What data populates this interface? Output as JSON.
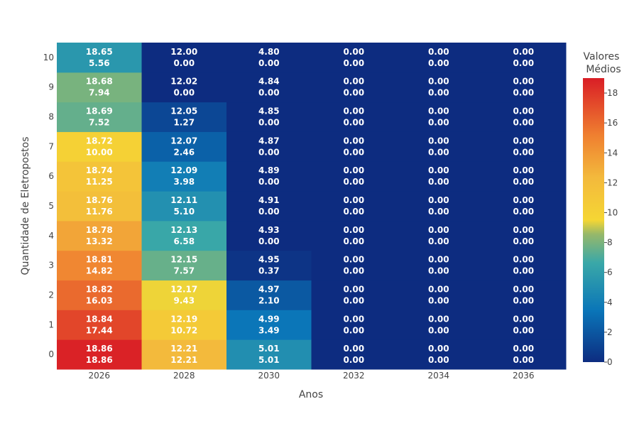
{
  "chart_data": {
    "type": "heatmap",
    "title": "",
    "xlabel": "Anos",
    "ylabel": "Quantidade de Eletropostos",
    "x": [
      "2026",
      "2028",
      "2030",
      "2032",
      "2034",
      "2036"
    ],
    "y": [
      "0",
      "1",
      "2",
      "3",
      "4",
      "5",
      "6",
      "7",
      "8",
      "9",
      "10"
    ],
    "z": [
      [
        18.86,
        12.21,
        5.01,
        0.0,
        0.0,
        0.0
      ],
      [
        17.44,
        10.72,
        3.49,
        0.0,
        0.0,
        0.0
      ],
      [
        16.03,
        9.43,
        2.1,
        0.0,
        0.0,
        0.0
      ],
      [
        14.82,
        7.57,
        0.37,
        0.0,
        0.0,
        0.0
      ],
      [
        13.32,
        6.58,
        0.0,
        0.0,
        0.0,
        0.0
      ],
      [
        11.76,
        5.1,
        0.0,
        0.0,
        0.0,
        0.0
      ],
      [
        11.25,
        3.98,
        0.0,
        0.0,
        0.0,
        0.0
      ],
      [
        10.0,
        2.46,
        0.0,
        0.0,
        0.0,
        0.0
      ],
      [
        7.52,
        1.27,
        0.0,
        0.0,
        0.0,
        0.0
      ],
      [
        7.94,
        0.0,
        0.0,
        0.0,
        0.0,
        0.0
      ],
      [
        5.56,
        0.0,
        0.0,
        0.0,
        0.0,
        0.0
      ]
    ],
    "annotations_top": [
      [
        18.86,
        12.21,
        5.01,
        0.0,
        0.0,
        0.0
      ],
      [
        18.84,
        12.19,
        4.99,
        0.0,
        0.0,
        0.0
      ],
      [
        18.82,
        12.17,
        4.97,
        0.0,
        0.0,
        0.0
      ],
      [
        18.81,
        12.15,
        4.95,
        0.0,
        0.0,
        0.0
      ],
      [
        18.78,
        12.13,
        4.93,
        0.0,
        0.0,
        0.0
      ],
      [
        18.76,
        12.11,
        4.91,
        0.0,
        0.0,
        0.0
      ],
      [
        18.74,
        12.09,
        4.89,
        0.0,
        0.0,
        0.0
      ],
      [
        18.72,
        12.07,
        4.87,
        0.0,
        0.0,
        0.0
      ],
      [
        18.69,
        12.05,
        4.85,
        0.0,
        0.0,
        0.0
      ],
      [
        18.68,
        12.02,
        4.84,
        0.0,
        0.0,
        0.0
      ],
      [
        18.65,
        12.0,
        4.8,
        0.0,
        0.0,
        0.0
      ]
    ],
    "colorbar": {
      "title": "Valores Médios",
      "range": [
        0,
        19
      ],
      "ticks": [
        0,
        2,
        4,
        6,
        8,
        10,
        12,
        14,
        16,
        18
      ]
    },
    "colorscale": [
      [
        0.0,
        "#0d2c80"
      ],
      [
        0.18,
        "#0a75b8"
      ],
      [
        0.35,
        "#3aa8a8"
      ],
      [
        0.45,
        "#96b86a"
      ],
      [
        0.5,
        "#f5d634"
      ],
      [
        0.65,
        "#f3b93c"
      ],
      [
        0.8,
        "#ef7f30"
      ],
      [
        1.0,
        "#d91e26"
      ]
    ],
    "text_color": "#ffffff"
  }
}
